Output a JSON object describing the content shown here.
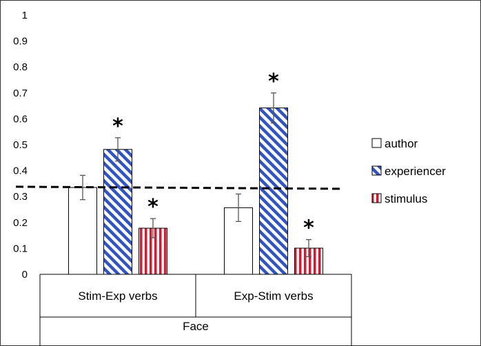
{
  "chart_data": {
    "type": "bar",
    "title": "",
    "xlabel": "Face",
    "ylabel": "",
    "ylim": [
      0,
      1
    ],
    "yticks": [
      "0",
      "0.1",
      "0.2",
      "0.3",
      "0.4",
      "0.5",
      "0.6",
      "0.7",
      "0.8",
      "0.9",
      "1"
    ],
    "categories": [
      "Stim-Exp verbs",
      "Exp-Stim verbs"
    ],
    "series": [
      {
        "name": "author",
        "values": [
          0.335,
          0.257
        ],
        "errors": [
          0.047,
          0.053
        ],
        "pattern": "white",
        "color": "#ffffff"
      },
      {
        "name": "experiencer",
        "values": [
          0.482,
          0.642
        ],
        "errors": [
          0.045,
          0.058
        ],
        "pattern": "diagonal-stripes",
        "color": "#2f54c8"
      },
      {
        "name": "stimulus",
        "values": [
          0.178,
          0.101
        ],
        "errors": [
          0.037,
          0.033
        ],
        "pattern": "vertical-stripes",
        "color": "#e0152c"
      }
    ],
    "significance_marker": "*",
    "significant": [
      [
        false,
        true,
        true
      ],
      [
        false,
        true,
        true
      ]
    ],
    "reference_line": {
      "from": 0.338,
      "to": 0.33,
      "style": "dashed"
    },
    "legend_position": "right",
    "grid": false
  }
}
